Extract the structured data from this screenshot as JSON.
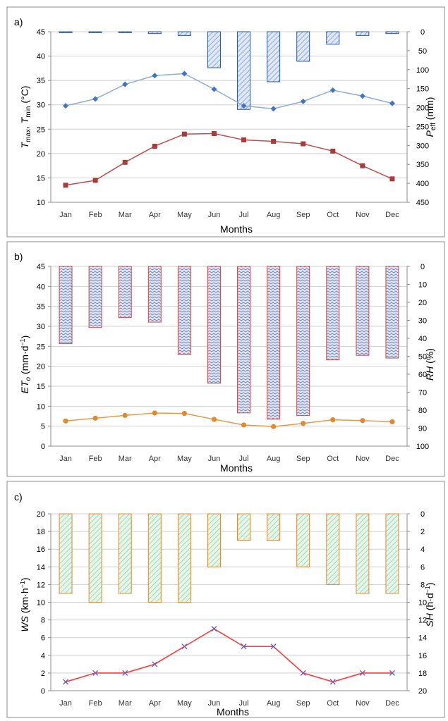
{
  "chart_data": [
    {
      "panel_label": "a)",
      "type": "bar+line",
      "categories": [
        "Jan",
        "Feb",
        "Mar",
        "Apr",
        "May",
        "Jun",
        "Jul",
        "Aug",
        "Sep",
        "Oct",
        "Nov",
        "Dec"
      ],
      "xlabel": "Months",
      "ylabel_left": "Tmax, Tmin (°C)",
      "ylabel_right": "Peff (mm)",
      "ylim_left": [
        10,
        45
      ],
      "yticks_left": [
        10,
        15,
        20,
        25,
        30,
        35,
        40,
        45
      ],
      "ylim_right": [
        0,
        450
      ],
      "yticks_right": [
        0,
        50,
        100,
        150,
        200,
        250,
        300,
        350,
        400,
        450
      ],
      "right_axis_inverted": true,
      "grid": true,
      "bars": {
        "axis": "right",
        "values": [
          1,
          1,
          1,
          5,
          10,
          95,
          205,
          132,
          78,
          33,
          10,
          5
        ],
        "stroke": "#2f5597",
        "fill": "#c5d4ec"
      },
      "series": [
        {
          "axis": "left",
          "values": [
            29.8,
            31.2,
            34.2,
            36.0,
            36.4,
            33.2,
            29.8,
            29.2,
            30.7,
            33.0,
            31.8,
            30.3
          ],
          "color": "#8fadd3",
          "marker": "diamond",
          "marker_color": "#4472c4"
        },
        {
          "axis": "left",
          "values": [
            13.5,
            14.5,
            18.2,
            21.5,
            24.0,
            24.1,
            22.8,
            22.5,
            22.0,
            20.5,
            17.5,
            14.8
          ],
          "color": "#c0504d",
          "marker": "square",
          "marker_color": "#a63d3b"
        }
      ]
    },
    {
      "panel_label": "b)",
      "type": "bar+line",
      "categories": [
        "Jan",
        "Feb",
        "Mar",
        "Apr",
        "May",
        "Jun",
        "Jul",
        "Aug",
        "Sep",
        "Oct",
        "Nov",
        "Dec"
      ],
      "xlabel": "Months",
      "ylabel_left": "ETo (mm·d⁻¹)",
      "ylabel_right": "RH (%)",
      "ylim_left": [
        0,
        45
      ],
      "yticks_left": [
        0,
        5,
        10,
        15,
        20,
        25,
        30,
        35,
        40,
        45
      ],
      "ylim_right": [
        0,
        100
      ],
      "yticks_right": [
        0,
        10,
        20,
        30,
        40,
        50,
        60,
        70,
        80,
        90,
        100
      ],
      "right_axis_inverted": true,
      "grid": true,
      "bars": {
        "axis": "right",
        "values": [
          43,
          34,
          28.5,
          31,
          49,
          65,
          81.5,
          85,
          83,
          52,
          49.5,
          51
        ],
        "stroke": "#c0504d",
        "fill": "#c9d3e6"
      },
      "series": [
        {
          "axis": "left",
          "values": [
            6.3,
            7.0,
            7.7,
            8.3,
            8.2,
            6.7,
            5.3,
            4.9,
            5.7,
            6.6,
            6.4,
            6.1
          ],
          "color": "#e59b4d",
          "marker": "circle",
          "marker_color": "#e08a30"
        }
      ]
    },
    {
      "panel_label": "c)",
      "type": "bar+line",
      "categories": [
        "Jan",
        "Feb",
        "Mar",
        "Apr",
        "May",
        "Jun",
        "Jul",
        "Aug",
        "Sep",
        "Oct",
        "Nov",
        "Dec"
      ],
      "xlabel": "Months",
      "ylabel_left": "WS (km·h⁻¹)",
      "ylabel_right": "SH (h·d⁻¹)",
      "ylim_left": [
        0,
        20
      ],
      "yticks_left": [
        0,
        2,
        4,
        6,
        8,
        10,
        12,
        14,
        16,
        18,
        20
      ],
      "ylim_right": [
        0,
        20
      ],
      "yticks_right": [
        0,
        2,
        4,
        6,
        8,
        10,
        12,
        14,
        16,
        18,
        20
      ],
      "right_axis_inverted": true,
      "grid": true,
      "bars": {
        "axis": "right",
        "values": [
          9,
          10,
          9,
          10,
          10,
          6,
          3,
          3,
          6,
          8,
          9,
          9
        ],
        "stroke": "#e0883a",
        "fill": "#d4eddc"
      },
      "series": [
        {
          "axis": "left",
          "values": [
            1,
            2,
            2,
            3,
            5,
            7,
            5,
            5,
            2,
            1,
            2,
            2
          ],
          "color": "#ff3b3b",
          "marker": "x",
          "marker_color": "#7b5ea7"
        }
      ]
    }
  ]
}
